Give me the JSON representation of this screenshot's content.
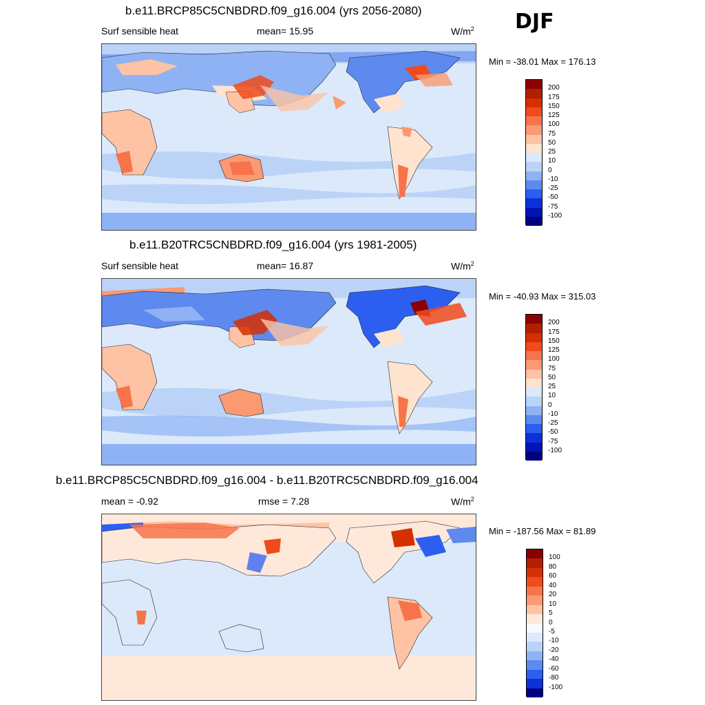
{
  "season": "DJF",
  "panels": [
    {
      "title": "b.e11.BRCP85C5CNBDRD.f09_g16.004 (yrs 2056-2080)",
      "left_label": "Surf sensible heat",
      "center_label": "mean=  15.95",
      "units": "W/m",
      "units_sup": "2",
      "minmax": "Min = -38.01 Max = 176.13",
      "levels": [
        "200",
        "175",
        "150",
        "125",
        "100",
        "75",
        "50",
        "25",
        "10",
        "0",
        "-10",
        "-25",
        "-50",
        "-75",
        "-100"
      ],
      "colors": [
        "#8b0000",
        "#b21f00",
        "#d43000",
        "#ef4b1c",
        "#f7744a",
        "#fb9a72",
        "#fdc3a4",
        "#fee3cf",
        "#dbe9fb",
        "#bbd3f7",
        "#8fb2f4",
        "#5e89ef",
        "#2c5ef0",
        "#0a32d8",
        "#0015b4",
        "#000080"
      ]
    },
    {
      "title": "b.e11.B20TRC5CNBDRD.f09_g16.004 (yrs 1981-2005)",
      "left_label": "Surf sensible heat",
      "center_label": "mean=  16.87",
      "units": "W/m",
      "units_sup": "2",
      "minmax": "Min = -40.93 Max = 315.03",
      "levels": [
        "200",
        "175",
        "150",
        "125",
        "100",
        "75",
        "50",
        "25",
        "10",
        "0",
        "-10",
        "-25",
        "-50",
        "-75",
        "-100"
      ],
      "colors": [
        "#8b0000",
        "#b21f00",
        "#d43000",
        "#ef4b1c",
        "#f7744a",
        "#fb9a72",
        "#fdc3a4",
        "#fee3cf",
        "#dbe9fb",
        "#bbd3f7",
        "#8fb2f4",
        "#5e89ef",
        "#2c5ef0",
        "#0a32d8",
        "#0015b4",
        "#000080"
      ]
    },
    {
      "title": "b.e11.BRCP85C5CNBDRD.f09_g16.004 - b.e11.B20TRC5CNBDRD.f09_g16.004",
      "left_label": "mean =  -0.92",
      "center_label": "rmse =   7.28",
      "units": "W/m",
      "units_sup": "2",
      "minmax": "Min = -187.56 Max =  81.89",
      "levels": [
        "100",
        "80",
        "60",
        "40",
        "20",
        "10",
        "5",
        "0",
        "-5",
        "-10",
        "-20",
        "-40",
        "-60",
        "-80",
        "-100"
      ],
      "colors": [
        "#8b0000",
        "#b21f00",
        "#d43000",
        "#ef4b1c",
        "#f7744a",
        "#fb9a72",
        "#fdc3a4",
        "#fee8da",
        "#f7fbff",
        "#dbe9fb",
        "#bbd3f7",
        "#8fb2f4",
        "#5e89ef",
        "#2c5ef0",
        "#0a32d8",
        "#000080"
      ]
    }
  ]
}
